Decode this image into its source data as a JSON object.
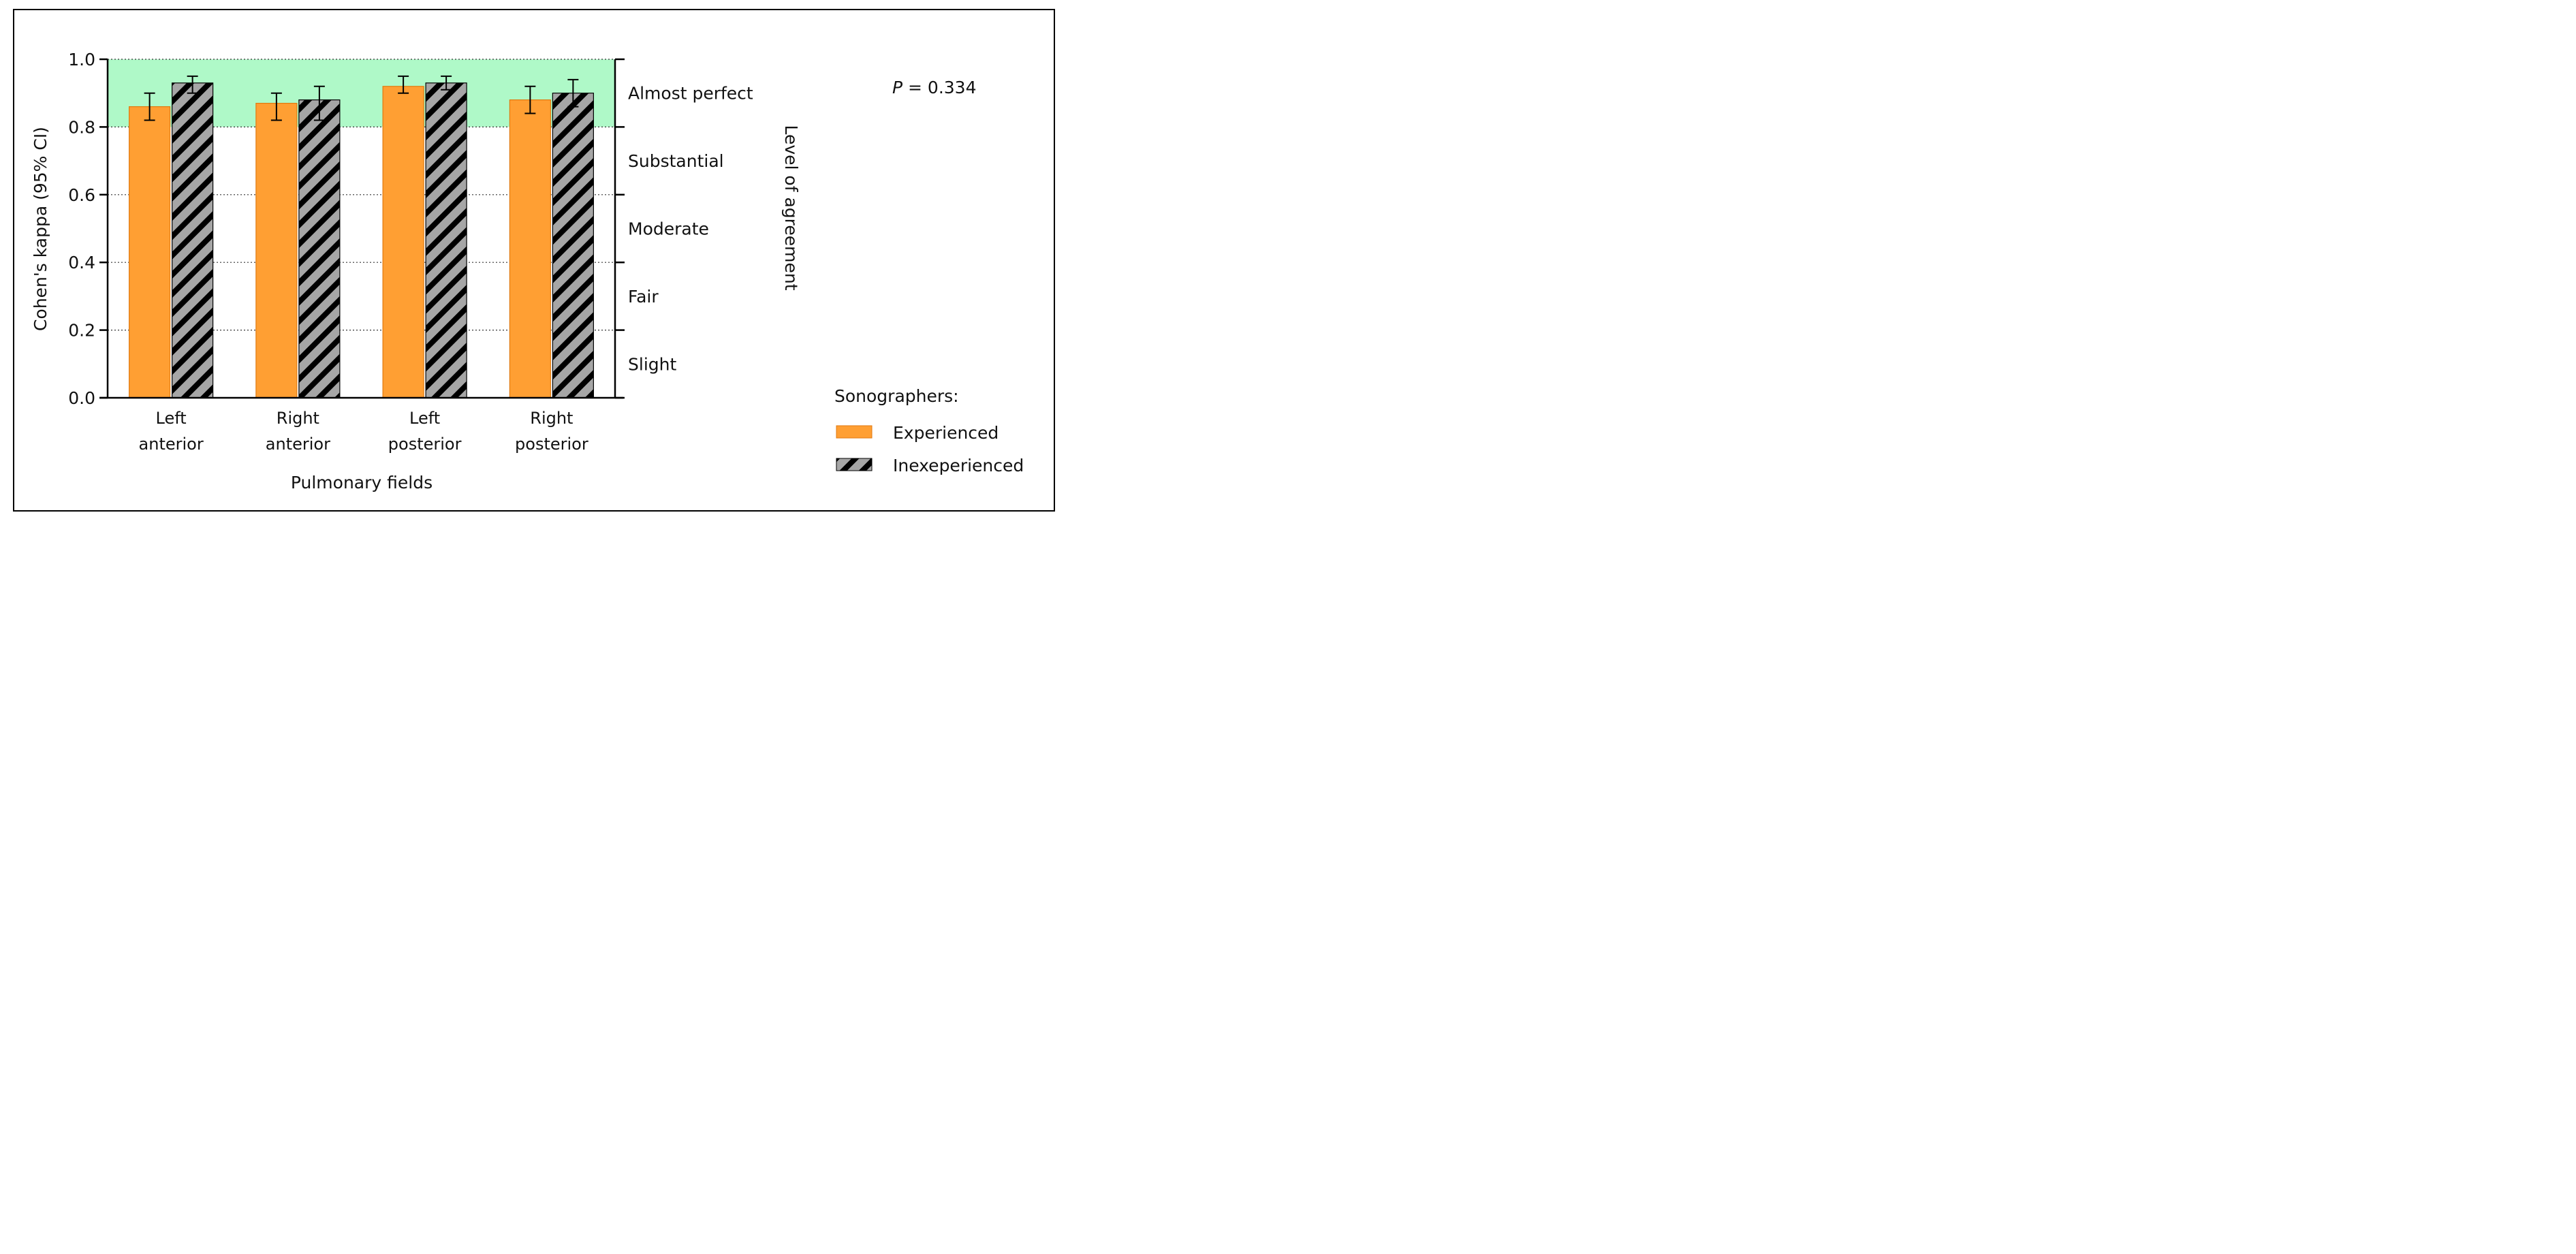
{
  "chart_data": {
    "type": "bar",
    "xlabel": "Pulmonary fields",
    "ylabel": "Cohen's kappa (95% CI)",
    "right_axis_label": "Level of agreement",
    "ylim": [
      0,
      1.0
    ],
    "yticks": [
      "0.0",
      "0.2",
      "0.4",
      "0.6",
      "0.8",
      "1.0"
    ],
    "grid": "dotted horizontal lines at 0.2, 0.4, 0.6, 0.8, 1.0",
    "categories": [
      [
        "Left",
        "anterior"
      ],
      [
        "Right",
        "anterior"
      ],
      [
        "Left",
        "posterior"
      ],
      [
        "Right",
        "posterior"
      ]
    ],
    "series": [
      {
        "name": "Experienced",
        "color": "#FF9F33",
        "pattern": "solid",
        "values": [
          0.86,
          0.87,
          0.92,
          0.88
        ],
        "ci_low": [
          0.82,
          0.82,
          0.9,
          0.84
        ],
        "ci_high": [
          0.9,
          0.9,
          0.95,
          0.92
        ]
      },
      {
        "name": "Inexeperienced",
        "color": "#A6A6A6",
        "pattern": "black diagonal hatch",
        "values": [
          0.93,
          0.88,
          0.93,
          0.9
        ],
        "ci_low": [
          0.9,
          0.82,
          0.91,
          0.86
        ],
        "ci_high": [
          0.95,
          0.92,
          0.95,
          0.94
        ]
      }
    ],
    "agreement_levels": [
      {
        "label": "Slight",
        "from": 0.0,
        "to": 0.2
      },
      {
        "label": "Fair",
        "from": 0.2,
        "to": 0.4
      },
      {
        "label": "Moderate",
        "from": 0.4,
        "to": 0.6
      },
      {
        "label": "Substantial",
        "from": 0.6,
        "to": 0.8
      },
      {
        "label": "Almost perfect",
        "from": 0.8,
        "to": 1.0
      }
    ],
    "highlight_band": {
      "from": 0.8,
      "to": 1.0,
      "color": "#AFF9C8"
    },
    "annotation": {
      "italic": "P",
      "rest": " = 0.334"
    },
    "legend": {
      "title": "Sonographers:",
      "placement": "bottom-right",
      "entries": [
        "Experienced",
        "Inexeperienced"
      ]
    }
  }
}
